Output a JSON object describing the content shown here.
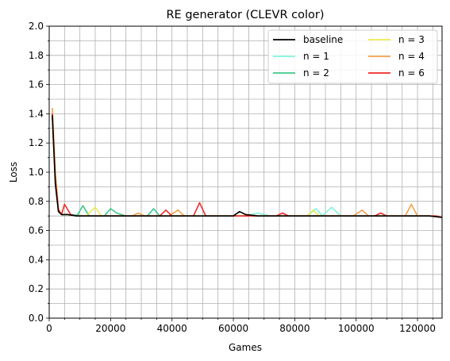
{
  "chart_data": {
    "type": "line",
    "title": "RE generator (CLEVR color)",
    "xlabel": "Games",
    "ylabel": "Loss",
    "xlim": [
      0,
      128000
    ],
    "ylim": [
      0,
      2.0
    ],
    "x_ticks": [
      0,
      20000,
      40000,
      60000,
      80000,
      100000,
      120000
    ],
    "x_tick_labels": [
      "0",
      "20000",
      "40000",
      "60000",
      "80000",
      "100000",
      "120000"
    ],
    "y_ticks": [
      0.0,
      0.2,
      0.4,
      0.6,
      0.8,
      1.0,
      1.2,
      1.4,
      1.6,
      1.8,
      2.0
    ],
    "y_tick_labels": [
      "0.0",
      "0.2",
      "0.4",
      "0.6",
      "0.8",
      "1.0",
      "1.2",
      "1.4",
      "1.6",
      "1.8",
      "2.0"
    ],
    "grid": true,
    "minor_grid": true,
    "legend_position": "top-right",
    "legend_columns": 2,
    "series": [
      {
        "name": "n = 1",
        "color": "#7ff5da",
        "x": [
          1000,
          2000,
          3000,
          4000,
          6000,
          9000,
          11000,
          13000,
          16000,
          18000,
          20000,
          22000,
          25000,
          29000,
          32000,
          35000,
          38000,
          41000,
          44000,
          48000,
          52000,
          56000,
          60000,
          64000,
          68000,
          72000,
          76000,
          80000,
          84000,
          87000,
          89000,
          92000,
          95000,
          100000,
          104000,
          108000,
          112000,
          116000,
          120000,
          124000,
          128000
        ],
        "y": [
          1.4,
          0.95,
          0.74,
          0.71,
          0.71,
          0.71,
          0.7,
          0.7,
          0.7,
          0.7,
          0.7,
          0.7,
          0.7,
          0.7,
          0.7,
          0.7,
          0.7,
          0.7,
          0.7,
          0.7,
          0.7,
          0.7,
          0.7,
          0.7,
          0.72,
          0.7,
          0.7,
          0.7,
          0.7,
          0.75,
          0.7,
          0.76,
          0.7,
          0.7,
          0.7,
          0.7,
          0.7,
          0.7,
          0.7,
          0.7,
          0.69
        ]
      },
      {
        "name": "n = 2",
        "color": "#3ec88a",
        "x": [
          1000,
          2000,
          3000,
          4000,
          6000,
          9000,
          11000,
          13000,
          16000,
          18000,
          20000,
          22000,
          25000,
          29000,
          32000,
          34000,
          36000,
          40000,
          44000,
          48000,
          52000,
          56000,
          60000,
          64000,
          68000,
          72000,
          76000,
          80000,
          84000,
          88000,
          92000,
          96000,
          100000,
          104000,
          108000,
          112000,
          116000,
          120000,
          124000,
          128000
        ],
        "y": [
          1.38,
          0.95,
          0.74,
          0.71,
          0.71,
          0.7,
          0.77,
          0.7,
          0.7,
          0.7,
          0.75,
          0.72,
          0.7,
          0.7,
          0.7,
          0.75,
          0.7,
          0.7,
          0.7,
          0.7,
          0.7,
          0.7,
          0.7,
          0.7,
          0.7,
          0.7,
          0.7,
          0.7,
          0.7,
          0.7,
          0.7,
          0.7,
          0.7,
          0.7,
          0.7,
          0.7,
          0.7,
          0.7,
          0.7,
          0.69
        ]
      },
      {
        "name": "n = 3",
        "color": "#ecec52",
        "x": [
          1000,
          2000,
          3000,
          4000,
          6000,
          9000,
          12000,
          15000,
          17000,
          20000,
          24000,
          28000,
          32000,
          36000,
          40000,
          44000,
          48000,
          52000,
          56000,
          60000,
          64000,
          68000,
          72000,
          76000,
          80000,
          84000,
          86000,
          88000,
          92000,
          96000,
          100000,
          104000,
          108000,
          112000,
          116000,
          120000,
          124000,
          128000
        ],
        "y": [
          1.44,
          1.0,
          0.75,
          0.71,
          0.71,
          0.7,
          0.7,
          0.76,
          0.7,
          0.7,
          0.7,
          0.7,
          0.7,
          0.7,
          0.7,
          0.7,
          0.7,
          0.7,
          0.7,
          0.7,
          0.7,
          0.7,
          0.7,
          0.7,
          0.7,
          0.7,
          0.74,
          0.7,
          0.7,
          0.7,
          0.7,
          0.7,
          0.7,
          0.7,
          0.7,
          0.7,
          0.7,
          0.69
        ]
      },
      {
        "name": "n = 4",
        "color": "#f4a04c",
        "x": [
          1000,
          2000,
          3000,
          4000,
          6000,
          9000,
          12000,
          16000,
          20000,
          24000,
          27000,
          29000,
          31000,
          35000,
          39000,
          42000,
          44000,
          48000,
          52000,
          56000,
          60000,
          63000,
          65000,
          68000,
          72000,
          76000,
          80000,
          84000,
          88000,
          92000,
          96000,
          99000,
          102000,
          104000,
          108000,
          112000,
          116000,
          118000,
          120000,
          124000,
          128000
        ],
        "y": [
          1.44,
          1.0,
          0.75,
          0.71,
          0.71,
          0.7,
          0.7,
          0.7,
          0.7,
          0.7,
          0.7,
          0.72,
          0.7,
          0.7,
          0.7,
          0.74,
          0.7,
          0.7,
          0.7,
          0.7,
          0.7,
          0.7,
          0.71,
          0.7,
          0.7,
          0.7,
          0.7,
          0.7,
          0.7,
          0.7,
          0.7,
          0.7,
          0.74,
          0.7,
          0.7,
          0.7,
          0.7,
          0.78,
          0.7,
          0.7,
          0.69
        ]
      },
      {
        "name": "n = 6",
        "color": "#ee2a2a",
        "x": [
          1000,
          2000,
          3000,
          4000,
          5000,
          7000,
          9000,
          12000,
          16000,
          20000,
          24000,
          28000,
          32000,
          36000,
          38000,
          40000,
          44000,
          47000,
          49000,
          51000,
          54000,
          58000,
          62000,
          66000,
          70000,
          74000,
          76000,
          78000,
          82000,
          86000,
          90000,
          94000,
          98000,
          102000,
          106000,
          108000,
          110000,
          114000,
          118000,
          122000,
          126000,
          128000
        ],
        "y": [
          1.4,
          0.95,
          0.74,
          0.71,
          0.78,
          0.71,
          0.7,
          0.7,
          0.7,
          0.7,
          0.7,
          0.7,
          0.7,
          0.7,
          0.74,
          0.7,
          0.7,
          0.7,
          0.79,
          0.7,
          0.7,
          0.7,
          0.7,
          0.7,
          0.7,
          0.7,
          0.72,
          0.7,
          0.7,
          0.7,
          0.7,
          0.7,
          0.7,
          0.7,
          0.7,
          0.72,
          0.7,
          0.7,
          0.7,
          0.7,
          0.7,
          0.69
        ]
      },
      {
        "name": "baseline",
        "color": "#000000",
        "x": [
          1000,
          2000,
          3000,
          4000,
          6000,
          9000,
          12000,
          16000,
          20000,
          24000,
          28000,
          32000,
          36000,
          40000,
          44000,
          48000,
          52000,
          56000,
          60000,
          62000,
          64000,
          68000,
          72000,
          76000,
          80000,
          84000,
          88000,
          92000,
          96000,
          100000,
          104000,
          108000,
          112000,
          116000,
          120000,
          124000,
          128000
        ],
        "y": [
          1.39,
          0.92,
          0.73,
          0.71,
          0.71,
          0.7,
          0.7,
          0.7,
          0.7,
          0.7,
          0.7,
          0.7,
          0.7,
          0.7,
          0.7,
          0.7,
          0.7,
          0.7,
          0.7,
          0.73,
          0.71,
          0.7,
          0.7,
          0.7,
          0.7,
          0.7,
          0.7,
          0.7,
          0.7,
          0.7,
          0.7,
          0.7,
          0.7,
          0.7,
          0.7,
          0.7,
          0.69
        ]
      }
    ],
    "legend_order": [
      "baseline",
      "n = 1",
      "n = 2",
      "n = 3",
      "n = 4",
      "n = 6"
    ]
  }
}
